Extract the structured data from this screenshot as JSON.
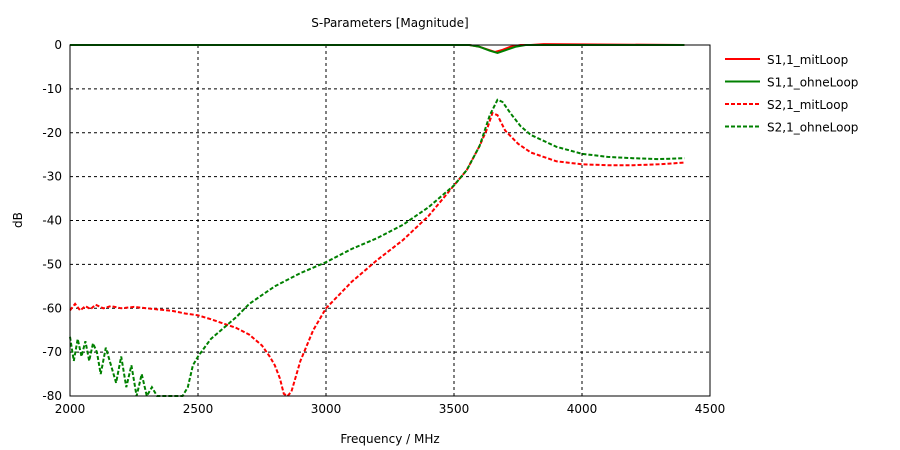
{
  "chart_data": {
    "type": "line",
    "title": "S-Parameters [Magnitude]",
    "xlabel": "Frequency / MHz",
    "ylabel": "dB",
    "xlim": [
      2000,
      4500
    ],
    "ylim": [
      -80,
      0
    ],
    "xticks": [
      2000,
      2500,
      3000,
      3500,
      4000,
      4500
    ],
    "yticks": [
      0,
      -10,
      -20,
      -30,
      -40,
      -50,
      -60,
      -70,
      -80
    ],
    "grid": true,
    "legend": "right",
    "series": [
      {
        "name": "S1,1_mitLoop",
        "color": "#ff0000",
        "dash": false,
        "x": [
          2000,
          3560,
          3600,
          3630,
          3660,
          3690,
          3720,
          3760,
          3800,
          3850,
          4400
        ],
        "y": [
          0,
          0,
          -0.4,
          -1.0,
          -1.6,
          -1.1,
          -0.4,
          0,
          0,
          0.2,
          0
        ]
      },
      {
        "name": "S1,1_ohneLoop",
        "color": "#008000",
        "dash": false,
        "x": [
          2000,
          3560,
          3600,
          3640,
          3670,
          3700,
          3740,
          3780,
          4400
        ],
        "y": [
          0,
          0,
          -0.4,
          -1.3,
          -1.8,
          -1.2,
          -0.4,
          0,
          0
        ]
      },
      {
        "name": "S2,1_mitLoop",
        "color": "#ff0000",
        "dash": true,
        "x": [
          2000,
          2020,
          2040,
          2060,
          2080,
          2100,
          2130,
          2160,
          2200,
          2250,
          2300,
          2350,
          2400,
          2450,
          2500,
          2550,
          2600,
          2650,
          2700,
          2750,
          2780,
          2800,
          2820,
          2835,
          2850,
          2865,
          2880,
          2900,
          2950,
          3000,
          3100,
          3200,
          3300,
          3400,
          3500,
          3550,
          3600,
          3630,
          3650,
          3670,
          3700,
          3750,
          3800,
          3900,
          4000,
          4100,
          4200,
          4300,
          4400
        ],
        "y": [
          -60.5,
          -59,
          -60.5,
          -59.5,
          -60.2,
          -59.2,
          -60,
          -59.5,
          -60,
          -59.7,
          -60,
          -60.3,
          -60.6,
          -61.2,
          -61.6,
          -62.5,
          -63.5,
          -64.5,
          -66,
          -68.5,
          -71,
          -73,
          -76,
          -79.5,
          -80,
          -79,
          -76,
          -72,
          -65,
          -60,
          -54,
          -49,
          -44.5,
          -39,
          -32,
          -28.5,
          -23,
          -19,
          -15.5,
          -16,
          -19.5,
          -22.5,
          -24.5,
          -26.5,
          -27.2,
          -27.4,
          -27.4,
          -27.2,
          -26.8
        ]
      },
      {
        "name": "S2,1_ohneLoop",
        "color": "#008000",
        "dash": true,
        "x": [
          2000,
          2015,
          2030,
          2045,
          2060,
          2075,
          2090,
          2105,
          2120,
          2140,
          2160,
          2180,
          2200,
          2220,
          2240,
          2260,
          2280,
          2300,
          2320,
          2340,
          2360,
          2380,
          2400,
          2420,
          2440,
          2460,
          2480,
          2500,
          2550,
          2600,
          2650,
          2700,
          2800,
          2900,
          3000,
          3100,
          3200,
          3300,
          3400,
          3500,
          3550,
          3600,
          3640,
          3670,
          3690,
          3720,
          3760,
          3800,
          3900,
          4000,
          4100,
          4200,
          4300,
          4400
        ],
        "y": [
          -66.5,
          -72,
          -67,
          -71,
          -67.5,
          -72,
          -68,
          -70,
          -75,
          -69,
          -73,
          -77,
          -71,
          -78,
          -73,
          -80,
          -75,
          -80,
          -78,
          -80,
          -80,
          -80,
          -80,
          -80,
          -80,
          -78,
          -73,
          -71,
          -67,
          -64.5,
          -62,
          -59,
          -55,
          -52,
          -49.5,
          -46.5,
          -44,
          -41,
          -37,
          -32,
          -28.5,
          -23,
          -16,
          -12.5,
          -13,
          -15.5,
          -18.5,
          -20.5,
          -23.2,
          -24.8,
          -25.5,
          -25.8,
          -26,
          -25.8
        ]
      }
    ]
  }
}
